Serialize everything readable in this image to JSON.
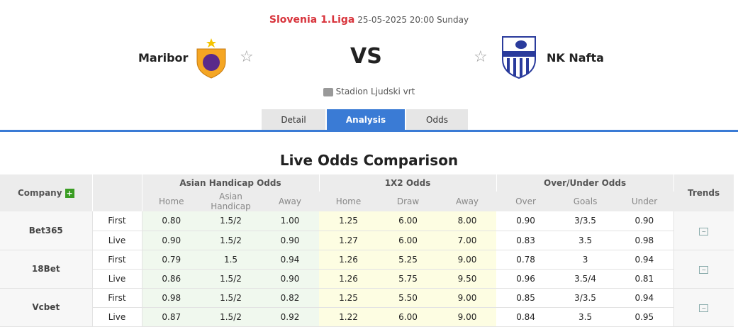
{
  "match": {
    "league": "Slovenia 1.Liga",
    "datetime": "25-05-2025 20:00 Sunday",
    "home": "Maribor",
    "away": "NK Nafta",
    "vs": "VS",
    "venue": "Stadion Ljudski vrt",
    "away_logo_text": "NK NAFTA"
  },
  "tabs": [
    {
      "label": "Detail"
    },
    {
      "label": "Analysis",
      "active": true
    },
    {
      "label": "Odds"
    }
  ],
  "section_title": "Live Odds Comparison",
  "table": {
    "company_header": "Company",
    "ah_header": "Asian Handicap Odds",
    "x_header": "1X2 Odds",
    "ou_header": "Over/Under Odds",
    "trends_header": "Trends",
    "sub": [
      "Home",
      "Asian Handicap",
      "Away",
      "Home",
      "Draw",
      "Away",
      "Over",
      "Goals",
      "Under"
    ],
    "rows": [
      {
        "company": "Bet365",
        "first": [
          "0.80",
          "1.5/2",
          "1.00",
          "1.25",
          "6.00",
          "8.00",
          "0.90",
          "3/3.5",
          "0.90"
        ],
        "live": [
          "0.90",
          "1.5/2",
          "0.90",
          "1.27",
          "6.00",
          "7.00",
          "0.83",
          "3.5",
          "0.98"
        ]
      },
      {
        "company": "18Bet",
        "first": [
          "0.79",
          "1.5",
          "0.94",
          "1.26",
          "5.25",
          "9.00",
          "0.78",
          "3",
          "0.94"
        ],
        "live": [
          "0.86",
          "1.5/2",
          "0.90",
          "1.26",
          "5.75",
          "9.50",
          "0.96",
          "3.5/4",
          "0.81"
        ]
      },
      {
        "company": "Vcbet",
        "first": [
          "0.98",
          "1.5/2",
          "0.82",
          "1.25",
          "5.50",
          "9.00",
          "0.85",
          "3/3.5",
          "0.94"
        ],
        "live": [
          "0.87",
          "1.5/2",
          "0.92",
          "1.22",
          "6.00",
          "9.00",
          "0.84",
          "3.5",
          "0.95"
        ]
      }
    ],
    "first_label": "First",
    "live_label": "Live"
  },
  "colors": {
    "accent": "#3a7bd5",
    "league": "#d8343c",
    "ah_bg": "#f0f8ee",
    "x_bg": "#fdfde2"
  }
}
